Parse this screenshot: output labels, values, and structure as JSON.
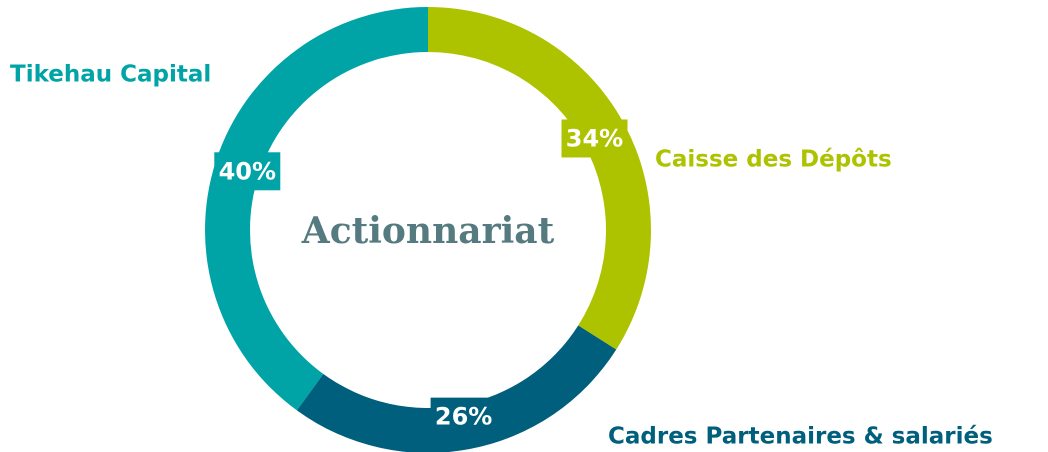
{
  "chart_data": {
    "type": "donut",
    "center_label": "Actionnariat",
    "categories": [
      "Caisse des Dépôts",
      "Cadres Partenaires & salariés",
      "Tikehau Capital"
    ],
    "values": [
      34,
      26,
      40
    ],
    "value_labels": [
      "34%",
      "26%",
      "40%"
    ],
    "colors": [
      "#aec300",
      "#005f7c",
      "#00a4a7"
    ]
  }
}
